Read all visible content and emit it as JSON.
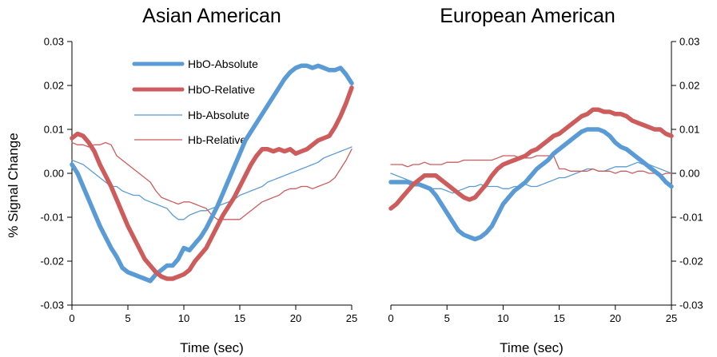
{
  "chart_data": [
    {
      "type": "line",
      "title": "Asian American",
      "xlabel": "Time (sec)",
      "ylabel": "% Signal Change",
      "xlim": [
        0,
        25
      ],
      "ylim": [
        -0.03,
        0.03
      ],
      "xticks": [
        "0",
        "5",
        "10",
        "15",
        "20",
        "25"
      ],
      "yticks": [
        "0.03",
        "0.02",
        "0.01",
        "0.00",
        "-0.01",
        "-0.02",
        "-0.03"
      ],
      "yaxis_side": "left",
      "legend_position": "top-left",
      "series": [
        {
          "name": "HbO-Absolute",
          "color": "#5b9bd5",
          "weight": "thick",
          "x": [
            0,
            0.5,
            1,
            1.5,
            2,
            2.5,
            3,
            3.5,
            4,
            4.5,
            5,
            5.5,
            6,
            6.5,
            7,
            7.5,
            8,
            8.5,
            9,
            9.5,
            10,
            10.5,
            11,
            11.5,
            12,
            12.5,
            13,
            13.5,
            14,
            14.5,
            15,
            15.5,
            16,
            16.5,
            17,
            17.5,
            18,
            18.5,
            19,
            19.5,
            20,
            20.5,
            21,
            21.5,
            22,
            22.5,
            23,
            23.5,
            24,
            24.5,
            25
          ],
          "y": [
            0.002,
            0.0,
            -0.003,
            -0.006,
            -0.009,
            -0.012,
            -0.0145,
            -0.017,
            -0.019,
            -0.0215,
            -0.0225,
            -0.023,
            -0.0235,
            -0.024,
            -0.0245,
            -0.023,
            -0.022,
            -0.021,
            -0.021,
            -0.0195,
            -0.017,
            -0.0175,
            -0.016,
            -0.0145,
            -0.0125,
            -0.01,
            -0.0075,
            -0.0045,
            -0.0015,
            0.0015,
            0.0045,
            0.0075,
            0.0095,
            0.0115,
            0.0135,
            0.0155,
            0.0175,
            0.0195,
            0.0215,
            0.023,
            0.024,
            0.0245,
            0.0245,
            0.024,
            0.0245,
            0.024,
            0.0235,
            0.0235,
            0.024,
            0.0225,
            0.0205
          ]
        },
        {
          "name": "HbO-Relative",
          "color": "#cd5c5c",
          "weight": "thick",
          "x": [
            0,
            0.5,
            1,
            1.5,
            2,
            2.5,
            3,
            3.5,
            4,
            4.5,
            5,
            5.5,
            6,
            6.5,
            7,
            7.5,
            8,
            8.5,
            9,
            9.5,
            10,
            10.5,
            11,
            11.5,
            12,
            12.5,
            13,
            13.5,
            14,
            14.5,
            15,
            15.5,
            16,
            16.5,
            17,
            17.5,
            18,
            18.5,
            19,
            19.5,
            20,
            20.5,
            21,
            21.5,
            22,
            22.5,
            23,
            23.5,
            24,
            24.5,
            25
          ],
          "y": [
            0.008,
            0.009,
            0.0085,
            0.007,
            0.005,
            0.002,
            -0.0005,
            -0.003,
            -0.006,
            -0.009,
            -0.012,
            -0.0145,
            -0.017,
            -0.0195,
            -0.021,
            -0.0225,
            -0.0235,
            -0.024,
            -0.024,
            -0.0235,
            -0.023,
            -0.022,
            -0.02,
            -0.0185,
            -0.017,
            -0.0145,
            -0.012,
            -0.0095,
            -0.0075,
            -0.0055,
            -0.003,
            -0.0005,
            0.002,
            0.004,
            0.0055,
            0.0055,
            0.005,
            0.0055,
            0.005,
            0.0055,
            0.0045,
            0.005,
            0.0055,
            0.0065,
            0.0075,
            0.008,
            0.0085,
            0.0105,
            0.013,
            0.016,
            0.0195
          ]
        },
        {
          "name": "Hb-Absolute",
          "color": "#5b9bd5",
          "weight": "thin",
          "x": [
            0,
            0.5,
            1,
            1.5,
            2,
            2.5,
            3,
            3.5,
            4,
            4.5,
            5,
            5.5,
            6,
            6.5,
            7,
            7.5,
            8,
            8.5,
            9,
            9.5,
            10,
            10.5,
            11,
            11.5,
            12,
            12.5,
            13,
            13.5,
            14,
            14.5,
            15,
            15.5,
            16,
            16.5,
            17,
            17.5,
            18,
            18.5,
            19,
            19.5,
            20,
            20.5,
            21,
            21.5,
            22,
            22.5,
            23,
            23.5,
            24,
            24.5,
            25
          ],
          "y": [
            0.003,
            0.0025,
            0.002,
            0.001,
            0.0,
            -0.001,
            -0.002,
            -0.003,
            -0.003,
            -0.004,
            -0.0045,
            -0.005,
            -0.005,
            -0.006,
            -0.0065,
            -0.007,
            -0.0075,
            -0.008,
            -0.0095,
            -0.0105,
            -0.0105,
            -0.0095,
            -0.009,
            -0.0085,
            -0.0085,
            -0.008,
            -0.0075,
            -0.007,
            -0.0065,
            -0.006,
            -0.005,
            -0.0045,
            -0.004,
            -0.0035,
            -0.003,
            -0.002,
            -0.0015,
            -0.001,
            -0.0005,
            0.0,
            0.0005,
            0.001,
            0.0015,
            0.002,
            0.0025,
            0.0035,
            0.004,
            0.0045,
            0.005,
            0.0055,
            0.006
          ]
        },
        {
          "name": "Hb-Relative",
          "color": "#cd5c5c",
          "weight": "thin",
          "x": [
            0,
            0.5,
            1,
            1.5,
            2,
            2.5,
            3,
            3.5,
            4,
            4.5,
            5,
            5.5,
            6,
            6.5,
            7,
            7.5,
            8,
            8.5,
            9,
            9.5,
            10,
            10.5,
            11,
            11.5,
            12,
            12.5,
            13,
            13.5,
            14,
            14.5,
            15,
            15.5,
            16,
            16.5,
            17,
            17.5,
            18,
            18.5,
            19,
            19.5,
            20,
            20.5,
            21,
            21.5,
            22,
            22.5,
            23,
            23.5,
            24,
            24.5,
            25
          ],
          "y": [
            0.007,
            0.0065,
            0.0065,
            0.006,
            0.0065,
            0.0065,
            0.007,
            0.0065,
            0.004,
            0.003,
            0.002,
            0.001,
            0.0,
            -0.001,
            -0.002,
            -0.004,
            -0.0055,
            -0.006,
            -0.0065,
            -0.007,
            -0.0065,
            -0.0065,
            -0.007,
            -0.0075,
            -0.008,
            -0.0095,
            -0.0105,
            -0.0105,
            -0.0105,
            -0.0105,
            -0.0105,
            -0.0095,
            -0.0085,
            -0.0075,
            -0.0065,
            -0.006,
            -0.0055,
            -0.005,
            -0.004,
            -0.0035,
            -0.0035,
            -0.003,
            -0.003,
            -0.0035,
            -0.003,
            -0.0025,
            -0.002,
            -0.001,
            0.001,
            0.003,
            0.0055
          ]
        }
      ]
    },
    {
      "type": "line",
      "title": "European American",
      "xlabel": "Time (sec)",
      "ylabel": "",
      "xlim": [
        0,
        25
      ],
      "ylim": [
        -0.03,
        0.03
      ],
      "xticks": [
        "0",
        "5",
        "10",
        "15",
        "20",
        "25"
      ],
      "yticks": [
        "0.03",
        "0.02",
        "0.01",
        "0.00",
        "-0.01",
        "-0.02",
        "-0.03"
      ],
      "yaxis_side": "right",
      "series": [
        {
          "name": "HbO-Absolute",
          "color": "#5b9bd5",
          "weight": "thick",
          "x": [
            0,
            0.5,
            1,
            1.5,
            2,
            2.5,
            3,
            3.5,
            4,
            4.5,
            5,
            5.5,
            6,
            6.5,
            7,
            7.5,
            8,
            8.5,
            9,
            9.5,
            10,
            10.5,
            11,
            11.5,
            12,
            12.5,
            13,
            13.5,
            14,
            14.5,
            15,
            15.5,
            16,
            16.5,
            17,
            17.5,
            18,
            18.5,
            19,
            19.5,
            20,
            20.5,
            21,
            21.5,
            22,
            22.5,
            23,
            23.5,
            24,
            24.5,
            25
          ],
          "y": [
            -0.002,
            -0.002,
            -0.002,
            -0.002,
            -0.0025,
            -0.0025,
            -0.003,
            -0.0035,
            -0.005,
            -0.007,
            -0.009,
            -0.011,
            -0.013,
            -0.014,
            -0.0145,
            -0.015,
            -0.0145,
            -0.0135,
            -0.012,
            -0.0095,
            -0.007,
            -0.0055,
            -0.004,
            -0.003,
            -0.002,
            -0.0005,
            0.001,
            0.002,
            0.003,
            0.0045,
            0.0055,
            0.0065,
            0.0075,
            0.0085,
            0.0095,
            0.01,
            0.01,
            0.01,
            0.0095,
            0.0085,
            0.007,
            0.006,
            0.0055,
            0.0045,
            0.0035,
            0.0025,
            0.0015,
            0.0005,
            -0.0005,
            -0.002,
            -0.003
          ]
        },
        {
          "name": "HbO-Relative",
          "color": "#cd5c5c",
          "weight": "thick",
          "x": [
            0,
            0.5,
            1,
            1.5,
            2,
            2.5,
            3,
            3.5,
            4,
            4.5,
            5,
            5.5,
            6,
            6.5,
            7,
            7.5,
            8,
            8.5,
            9,
            9.5,
            10,
            10.5,
            11,
            11.5,
            12,
            12.5,
            13,
            13.5,
            14,
            14.5,
            15,
            15.5,
            16,
            16.5,
            17,
            17.5,
            18,
            18.5,
            19,
            19.5,
            20,
            20.5,
            21,
            21.5,
            22,
            22.5,
            23,
            23.5,
            24,
            24.5,
            25
          ],
          "y": [
            -0.008,
            -0.007,
            -0.0055,
            -0.004,
            -0.0025,
            -0.0015,
            -0.0005,
            -0.0005,
            -0.0005,
            -0.0015,
            -0.0025,
            -0.0035,
            -0.0045,
            -0.0055,
            -0.006,
            -0.0055,
            -0.004,
            -0.0025,
            -0.0005,
            0.001,
            0.002,
            0.0025,
            0.003,
            0.0035,
            0.004,
            0.005,
            0.0055,
            0.0065,
            0.0075,
            0.0085,
            0.009,
            0.01,
            0.011,
            0.012,
            0.013,
            0.0135,
            0.0145,
            0.0145,
            0.014,
            0.014,
            0.0135,
            0.0135,
            0.013,
            0.012,
            0.0115,
            0.011,
            0.0105,
            0.01,
            0.01,
            0.009,
            0.0085
          ]
        },
        {
          "name": "Hb-Absolute",
          "color": "#5b9bd5",
          "weight": "thin",
          "x": [
            0,
            0.5,
            1,
            1.5,
            2,
            2.5,
            3,
            3.5,
            4,
            4.5,
            5,
            5.5,
            6,
            6.5,
            7,
            7.5,
            8,
            8.5,
            9,
            9.5,
            10,
            10.5,
            11,
            11.5,
            12,
            12.5,
            13,
            13.5,
            14,
            14.5,
            15,
            15.5,
            16,
            16.5,
            17,
            17.5,
            18,
            18.5,
            19,
            19.5,
            20,
            20.5,
            21,
            21.5,
            22,
            22.5,
            23,
            23.5,
            24,
            24.5,
            25
          ],
          "y": [
            0.0,
            -0.0005,
            -0.001,
            -0.0015,
            -0.002,
            -0.0025,
            -0.003,
            -0.0035,
            -0.0035,
            -0.0035,
            -0.004,
            -0.0045,
            -0.004,
            -0.0035,
            -0.003,
            -0.003,
            -0.0025,
            -0.003,
            -0.003,
            -0.003,
            -0.0035,
            -0.0035,
            -0.003,
            -0.003,
            -0.0025,
            -0.003,
            -0.003,
            -0.0025,
            -0.002,
            -0.0015,
            -0.001,
            -0.001,
            -0.0005,
            0.0,
            0.0005,
            0.001,
            0.001,
            0.0005,
            0.0005,
            0.001,
            0.0015,
            0.0015,
            0.0015,
            0.002,
            0.0025,
            0.002,
            0.002,
            0.0015,
            0.001,
            0.0005,
            0.0
          ]
        },
        {
          "name": "Hb-Relative",
          "color": "#cd5c5c",
          "weight": "thin",
          "x": [
            0,
            0.5,
            1,
            1.5,
            2,
            2.5,
            3,
            3.5,
            4,
            4.5,
            5,
            5.5,
            6,
            6.5,
            7,
            7.5,
            8,
            8.5,
            9,
            9.5,
            10,
            10.5,
            11,
            11.5,
            12,
            12.5,
            13,
            13.5,
            14,
            14.5,
            15,
            15.5,
            16,
            16.5,
            17,
            17.5,
            18,
            18.5,
            19,
            19.5,
            20,
            20.5,
            21,
            21.5,
            22,
            22.5,
            23,
            23.5,
            24,
            24.5,
            25
          ],
          "y": [
            0.002,
            0.002,
            0.002,
            0.0015,
            0.002,
            0.002,
            0.0025,
            0.002,
            0.002,
            0.002,
            0.0025,
            0.0025,
            0.0025,
            0.003,
            0.003,
            0.003,
            0.003,
            0.003,
            0.003,
            0.0035,
            0.004,
            0.004,
            0.004,
            0.0035,
            0.0035,
            0.0035,
            0.004,
            0.004,
            0.004,
            0.004,
            0.001,
            0.001,
            0.0005,
            0.0005,
            0.0005,
            0.0005,
            0.001,
            0.0005,
            0.0005,
            0.0005,
            0.0,
            0.0005,
            0.0005,
            0.0,
            0.0005,
            0.0005,
            0.0,
            0.0,
            -0.0005,
            0.0,
            0.0
          ]
        }
      ]
    }
  ]
}
